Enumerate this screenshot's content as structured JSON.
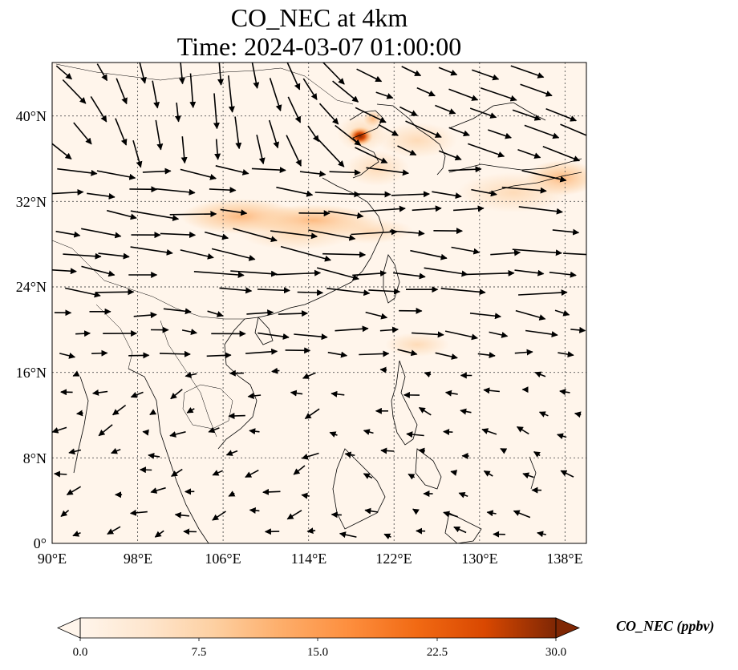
{
  "title": "CO_NEC at 4km",
  "subtitle": "Time: 2024-03-07 01:00:00",
  "map": {
    "lon_range": [
      90,
      140
    ],
    "lat_range": [
      0,
      45
    ],
    "lon_ticks": [
      "90°E",
      "98°E",
      "106°E",
      "114°E",
      "122°E",
      "130°E",
      "138°E"
    ],
    "lat_ticks": [
      "0°",
      "8°N",
      "16°N",
      "24°N",
      "32°N",
      "40°N"
    ],
    "gridlines": true,
    "background_color": "#fff5eb",
    "coastline_color": "#000000",
    "vector_color": "#000000"
  },
  "colorbar": {
    "label": "CO_NEC (ppbv)",
    "ticks": [
      "0.0",
      "7.5",
      "15.0",
      "22.5",
      "30.0"
    ],
    "range": [
      0,
      30
    ],
    "extend": "both",
    "colormap": [
      "#fff5eb",
      "#fdd0a2",
      "#fdae6b",
      "#fd8d3c",
      "#f16913",
      "#d94801",
      "#a63603",
      "#7f2704"
    ]
  }
}
